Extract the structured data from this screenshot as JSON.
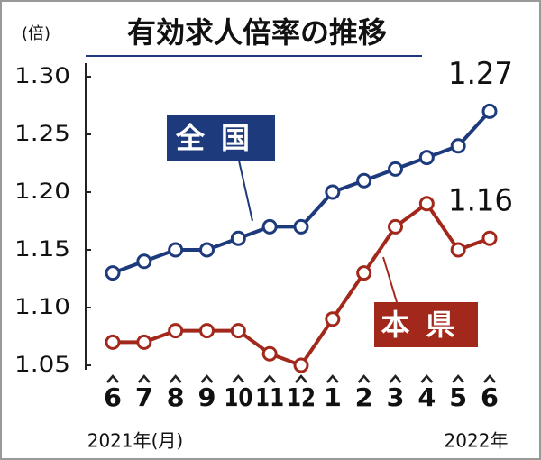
{
  "chart_data": {
    "type": "line",
    "title": "有効求人倍率の推移",
    "y_unit": "(倍)",
    "categories": [
      "6",
      "7",
      "8",
      "9",
      "10",
      "11",
      "12",
      "1",
      "2",
      "3",
      "4",
      "5",
      "6"
    ],
    "annotations": [
      "2021年(月)",
      "2022年"
    ],
    "series": [
      {
        "name": "全国",
        "color": "#1d3a7c",
        "values": [
          1.13,
          1.14,
          1.15,
          1.15,
          1.16,
          1.17,
          1.17,
          1.2,
          1.21,
          1.22,
          1.23,
          1.24,
          1.27
        ]
      },
      {
        "name": "本県",
        "color": "#a3281c",
        "values": [
          1.07,
          1.07,
          1.08,
          1.08,
          1.08,
          1.06,
          1.05,
          1.09,
          1.13,
          1.17,
          1.19,
          1.15,
          1.16
        ]
      }
    ],
    "ylim": [
      1.05,
      1.3
    ],
    "yticks": [
      1.05,
      {
        "value": 1.1,
        "label": "1.10"
      },
      1.15,
      {
        "value": 1.2,
        "label": "1.20"
      },
      1.25,
      {
        "value": 1.3,
        "label": "1.30"
      }
    ]
  }
}
